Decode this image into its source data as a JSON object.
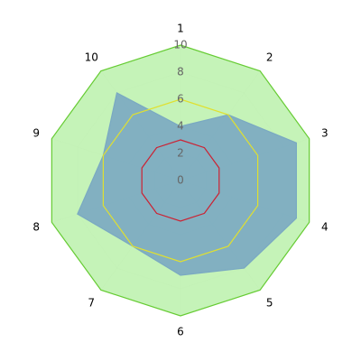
{
  "chart_data": {
    "type": "radar",
    "categories": [
      "1",
      "2",
      "3",
      "4",
      "5",
      "6",
      "7",
      "8",
      "9",
      "10"
    ],
    "rlim": [
      0,
      10
    ],
    "rticks": [
      0,
      2,
      4,
      6,
      8,
      10
    ],
    "grid": true,
    "series": [
      {
        "color": "#66cc33",
        "fill": "#bff2b0",
        "values": [
          10,
          10,
          10,
          10,
          10,
          10,
          10,
          10,
          10,
          10
        ]
      },
      {
        "color": "#7aa9c2",
        "fill": "#7aa9c2",
        "values": [
          4,
          6,
          9,
          9,
          8,
          7,
          6,
          8,
          6,
          8
        ]
      },
      {
        "color": "#e0e030",
        "fill": null,
        "values": [
          6,
          6,
          6,
          6,
          6,
          6,
          6,
          6,
          6,
          6
        ]
      },
      {
        "color": "#cc2233",
        "fill": null,
        "values": [
          3,
          3,
          3,
          3,
          3,
          3,
          3,
          3,
          3,
          3
        ]
      }
    ]
  }
}
